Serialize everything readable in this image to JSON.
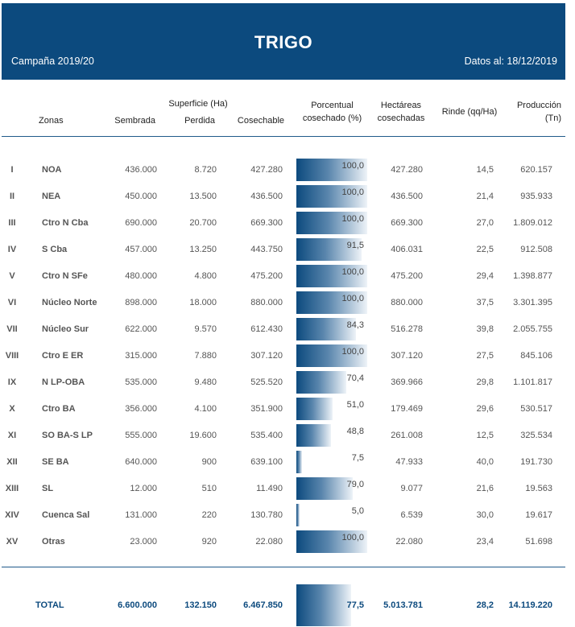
{
  "header": {
    "title": "TRIGO",
    "campaign": "Campaña 2019/20",
    "date": "Datos al: 18/12/2019"
  },
  "columns": {
    "zonas": "Zonas",
    "superficie": "Superficie (Ha)",
    "sembrada": "Sembrada",
    "perdida": "Perdida",
    "cosechable": "Cosechable",
    "porcentual_1": "Porcentual",
    "porcentual_2": "cosechado (%)",
    "hectareas_1": "Hectáreas",
    "hectareas_2": "cosechadas",
    "rinde": "Rinde (qq/Ha)",
    "produccion_1": "Producción",
    "produccion_2": "(Tn)"
  },
  "rows": [
    {
      "roman": "I",
      "zona": "NOA",
      "sembrada": "436.000",
      "perdida": "8.720",
      "cosechable": "427.280",
      "pct_label": "100,0",
      "pct": 100.0,
      "hectareas": "427.280",
      "rinde": "14,5",
      "produccion": "620.157"
    },
    {
      "roman": "II",
      "zona": "NEA",
      "sembrada": "450.000",
      "perdida": "13.500",
      "cosechable": "436.500",
      "pct_label": "100,0",
      "pct": 100.0,
      "hectareas": "436.500",
      "rinde": "21,4",
      "produccion": "935.933"
    },
    {
      "roman": "III",
      "zona": "Ctro N Cba",
      "sembrada": "690.000",
      "perdida": "20.700",
      "cosechable": "669.300",
      "pct_label": "100,0",
      "pct": 100.0,
      "hectareas": "669.300",
      "rinde": "27,0",
      "produccion": "1.809.012"
    },
    {
      "roman": "IV",
      "zona": "S Cba",
      "sembrada": "457.000",
      "perdida": "13.250",
      "cosechable": "443.750",
      "pct_label": "91,5",
      "pct": 91.5,
      "hectareas": "406.031",
      "rinde": "22,5",
      "produccion": "912.508"
    },
    {
      "roman": "V",
      "zona": "Ctro N SFe",
      "sembrada": "480.000",
      "perdida": "4.800",
      "cosechable": "475.200",
      "pct_label": "100,0",
      "pct": 100.0,
      "hectareas": "475.200",
      "rinde": "29,4",
      "produccion": "1.398.877"
    },
    {
      "roman": "VI",
      "zona": "Núcleo Norte",
      "sembrada": "898.000",
      "perdida": "18.000",
      "cosechable": "880.000",
      "pct_label": "100,0",
      "pct": 100.0,
      "hectareas": "880.000",
      "rinde": "37,5",
      "produccion": "3.301.395"
    },
    {
      "roman": "VII",
      "zona": "Núcleo Sur",
      "sembrada": "622.000",
      "perdida": "9.570",
      "cosechable": "612.430",
      "pct_label": "84,3",
      "pct": 84.3,
      "hectareas": "516.278",
      "rinde": "39,8",
      "produccion": "2.055.755"
    },
    {
      "roman": "VIII",
      "zona": "Ctro E ER",
      "sembrada": "315.000",
      "perdida": "7.880",
      "cosechable": "307.120",
      "pct_label": "100,0",
      "pct": 100.0,
      "hectareas": "307.120",
      "rinde": "27,5",
      "produccion": "845.106"
    },
    {
      "roman": "IX",
      "zona": "N LP-OBA",
      "sembrada": "535.000",
      "perdida": "9.480",
      "cosechable": "525.520",
      "pct_label": "70,4",
      "pct": 70.4,
      "hectareas": "369.966",
      "rinde": "29,8",
      "produccion": "1.101.817"
    },
    {
      "roman": "X",
      "zona": "Ctro BA",
      "sembrada": "356.000",
      "perdida": "4.100",
      "cosechable": "351.900",
      "pct_label": "51,0",
      "pct": 51.0,
      "hectareas": "179.469",
      "rinde": "29,6",
      "produccion": "530.517"
    },
    {
      "roman": "XI",
      "zona": "SO BA-S LP",
      "sembrada": "555.000",
      "perdida": "19.600",
      "cosechable": "535.400",
      "pct_label": "48,8",
      "pct": 48.8,
      "hectareas": "261.008",
      "rinde": "12,5",
      "produccion": "325.534"
    },
    {
      "roman": "XII",
      "zona": "SE BA",
      "sembrada": "640.000",
      "perdida": "900",
      "cosechable": "639.100",
      "pct_label": "7,5",
      "pct": 7.5,
      "hectareas": "47.933",
      "rinde": "40,0",
      "produccion": "191.730"
    },
    {
      "roman": "XIII",
      "zona": "SL",
      "sembrada": "12.000",
      "perdida": "510",
      "cosechable": "11.490",
      "pct_label": "79,0",
      "pct": 79.0,
      "hectareas": "9.077",
      "rinde": "21,6",
      "produccion": "19.563"
    },
    {
      "roman": "XIV",
      "zona": "Cuenca Sal",
      "sembrada": "131.000",
      "perdida": "220",
      "cosechable": "130.780",
      "pct_label": "5,0",
      "pct": 5.0,
      "hectareas": "6.539",
      "rinde": "30,0",
      "produccion": "19.617"
    },
    {
      "roman": "XV",
      "zona": "Otras",
      "sembrada": "23.000",
      "perdida": "920",
      "cosechable": "22.080",
      "pct_label": "100,0",
      "pct": 100.0,
      "hectareas": "22.080",
      "rinde": "23,4",
      "produccion": "51.698"
    }
  ],
  "total": {
    "label": "TOTAL",
    "sembrada": "6.600.000",
    "perdida": "132.150",
    "cosechable": "6.467.850",
    "pct_label": "77,5",
    "pct": 77.5,
    "hectareas": "5.013.781",
    "rinde": "28,2",
    "produccion": "14.119.220"
  },
  "colors": {
    "header_bg": "#0c4a7e",
    "total_text": "#0c4a7e"
  }
}
